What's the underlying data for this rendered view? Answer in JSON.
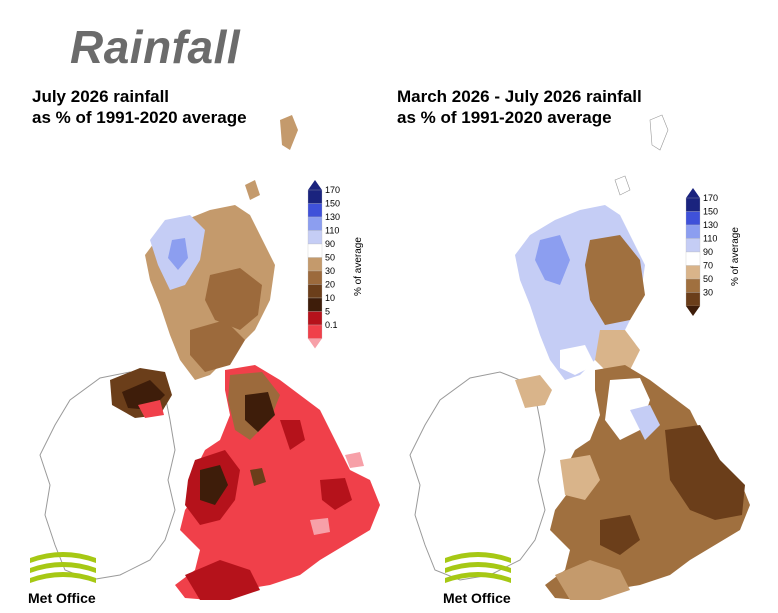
{
  "title": "Rainfall",
  "left_map": {
    "title_line1": "July 2026 rainfall",
    "title_line2": "as % of 1991-2020 average",
    "legend": {
      "axis_label": "% of average",
      "bins": [
        {
          "label": "170",
          "color": "#1a237e"
        },
        {
          "label": "150",
          "color": "#3f51d9"
        },
        {
          "label": "130",
          "color": "#8c9ef0"
        },
        {
          "label": "110",
          "color": "#c5cdf5"
        },
        {
          "label": "90",
          "color": "#ffffff"
        },
        {
          "label": "50",
          "color": "#c49a6c"
        },
        {
          "label": "30",
          "color": "#9c6a3c"
        },
        {
          "label": "20",
          "color": "#6b3e1a"
        },
        {
          "label": "10",
          "color": "#3e1d0a"
        },
        {
          "label": "5",
          "color": "#b5121b"
        },
        {
          "label": "0.1",
          "color": "#f0404a"
        }
      ],
      "bottom_tip_color": "#f7a0a8"
    }
  },
  "right_map": {
    "title_line1": "March 2026 - July 2026 rainfall",
    "title_line2": "as % of 1991-2020 average",
    "legend": {
      "axis_label": "% of average",
      "bins": [
        {
          "label": "170",
          "color": "#1a237e"
        },
        {
          "label": "150",
          "color": "#3f51d9"
        },
        {
          "label": "130",
          "color": "#8c9ef0"
        },
        {
          "label": "110",
          "color": "#c5cdf5"
        },
        {
          "label": "90",
          "color": "#ffffff"
        },
        {
          "label": "70",
          "color": "#d9b48a"
        },
        {
          "label": "50",
          "color": "#a0703f"
        },
        {
          "label": "30",
          "color": "#6b3e1a"
        }
      ],
      "bottom_tip_color": "#3e1d0a"
    }
  },
  "logo_text_left": "Met Office",
  "logo_text_right": "Met Office",
  "colors": {
    "title_grey": "#6b6b6b",
    "logo_green": "#a6c814",
    "ireland_outline": "#999999"
  }
}
